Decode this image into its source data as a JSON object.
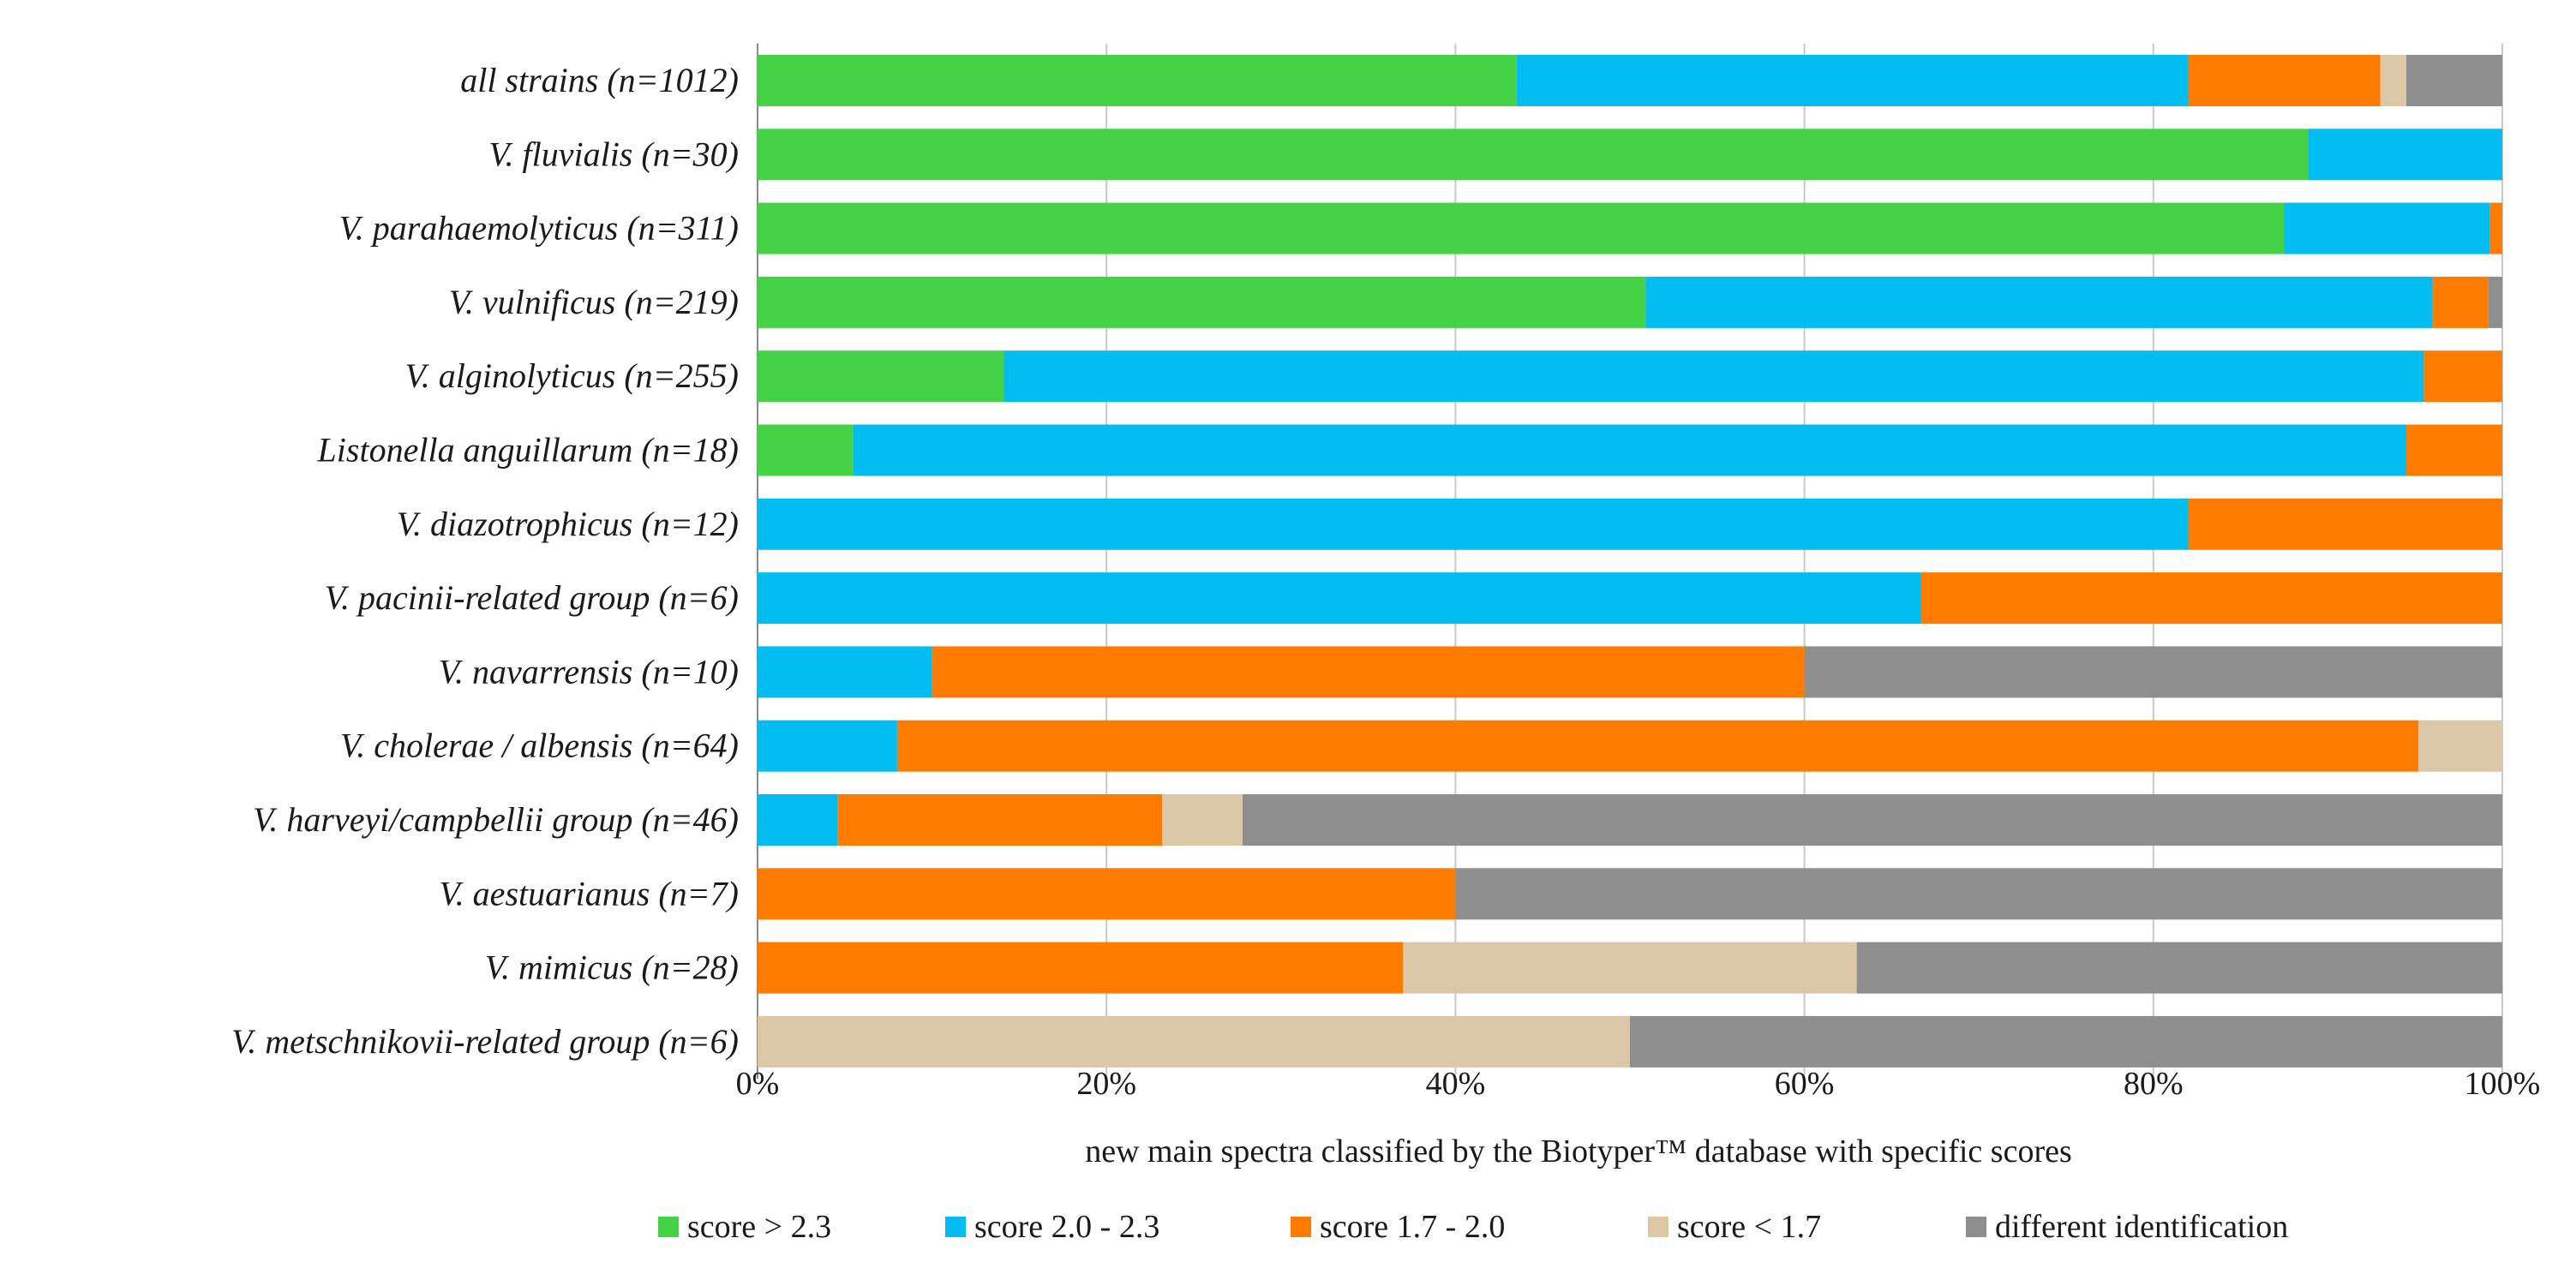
{
  "chart_data": {
    "type": "bar",
    "orientation": "horizontal",
    "stacked": "percent",
    "title": "",
    "xlabel": "new main spectra classified by the Biotyper™ database with specific scores",
    "ylabel": "",
    "xlim": [
      0,
      100
    ],
    "x_ticks": [
      "0%",
      "20%",
      "40%",
      "60%",
      "80%",
      "100%"
    ],
    "grid": "vertical",
    "legend_position": "bottom",
    "categories": [
      "all strains (n=1012)",
      "V. fluvialis  (n=30)",
      "V. parahaemolyticus  (n=311)",
      "V. vulnificus  (n=219)",
      "V. alginolyticus  (n=255)",
      "Listonella anguillarum  (n=18)",
      "V. diazotrophicus  (n=12)",
      "V. pacinii-related group  (n=6)",
      "V. navarrensis  (n=10)",
      "V. cholerae / albensis  (n=64)",
      "V. harveyi/campbellii group  (n=46)",
      "V. aestuarianus  (n=7)",
      "V. mimicus  (n=28)",
      "V. metschnikovii-related group  (n=6)"
    ],
    "series": [
      {
        "name": "score > 2.3",
        "color": "#46d247",
        "values": [
          43.5,
          88.9,
          87.5,
          50.9,
          14.1,
          5.5,
          0,
          0,
          0,
          0,
          0,
          0,
          0,
          0
        ]
      },
      {
        "name": "score 2.0 - 2.3",
        "color": "#03bdf0",
        "values": [
          38.5,
          11.1,
          11.8,
          45.1,
          81.4,
          89.0,
          82.0,
          66.7,
          10.0,
          8.0,
          4.6,
          0,
          0,
          0
        ]
      },
      {
        "name": "score 1.7 - 2.0",
        "color": "#ff7c00",
        "values": [
          11.0,
          0,
          0.7,
          3.2,
          4.5,
          5.5,
          18.0,
          33.3,
          50.0,
          87.2,
          18.6,
          40.0,
          37.0,
          0
        ]
      },
      {
        "name": "score < 1.7",
        "color": "#dcc7a6",
        "values": [
          1.5,
          0,
          0,
          0,
          0,
          0,
          0,
          0,
          0,
          4.8,
          4.6,
          0,
          26.0,
          50.0
        ]
      },
      {
        "name": "different identification",
        "color": "#8e8e8e",
        "values": [
          5.5,
          0,
          0,
          0.8,
          0,
          0,
          0,
          0,
          40.0,
          0,
          72.2,
          60.0,
          37.0,
          50.0
        ]
      }
    ]
  }
}
